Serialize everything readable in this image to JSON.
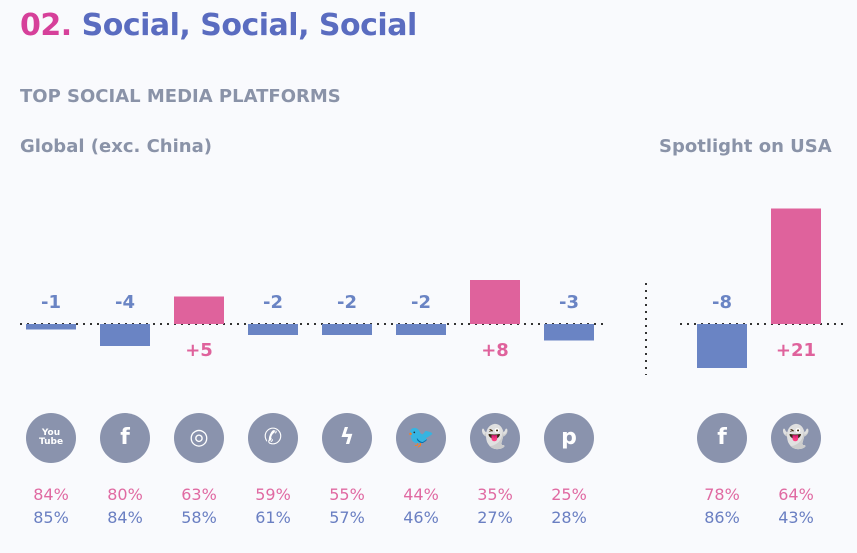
{
  "header": {
    "number": "02.",
    "title": "Social, Social, Social"
  },
  "subheading": "TOP SOCIAL MEDIA PLATFORMS",
  "colors": {
    "negative": "#6a84c4",
    "positive": "#df629c",
    "icon": "#8a93ad",
    "pct_top": "#e06aa2",
    "pct_bottom": "#6a7fc2"
  },
  "chart_data": [
    {
      "type": "bar",
      "title": "Global (exc. China)",
      "categories": [
        "YouTube",
        "Facebook",
        "Instagram",
        "WhatsApp",
        "Messenger",
        "Twitter",
        "Snapchat",
        "Pinterest"
      ],
      "icons": [
        "youtube-icon",
        "facebook-icon",
        "instagram-icon",
        "whatsapp-icon",
        "messenger-icon",
        "twitter-icon",
        "snapchat-icon",
        "pinterest-icon"
      ],
      "values": [
        -1,
        -4,
        5,
        -2,
        -2,
        -2,
        8,
        -3
      ],
      "labels": [
        "-1",
        "-4",
        "+5",
        "-2",
        "-2",
        "-2",
        "+8",
        "-3"
      ],
      "pct_top": [
        "84%",
        "80%",
        "63%",
        "59%",
        "55%",
        "44%",
        "35%",
        "25%"
      ],
      "pct_bottom": [
        "85%",
        "84%",
        "58%",
        "61%",
        "57%",
        "46%",
        "27%",
        "28%"
      ]
    },
    {
      "type": "bar",
      "title": "Spotlight on USA",
      "categories": [
        "Facebook",
        "Snapchat"
      ],
      "icons": [
        "facebook-icon",
        "snapchat-icon"
      ],
      "values": [
        -8,
        21
      ],
      "labels": [
        "-8",
        "+21"
      ],
      "pct_top": [
        "78%",
        "64%"
      ],
      "pct_bottom": [
        "86%",
        "43%"
      ]
    }
  ]
}
